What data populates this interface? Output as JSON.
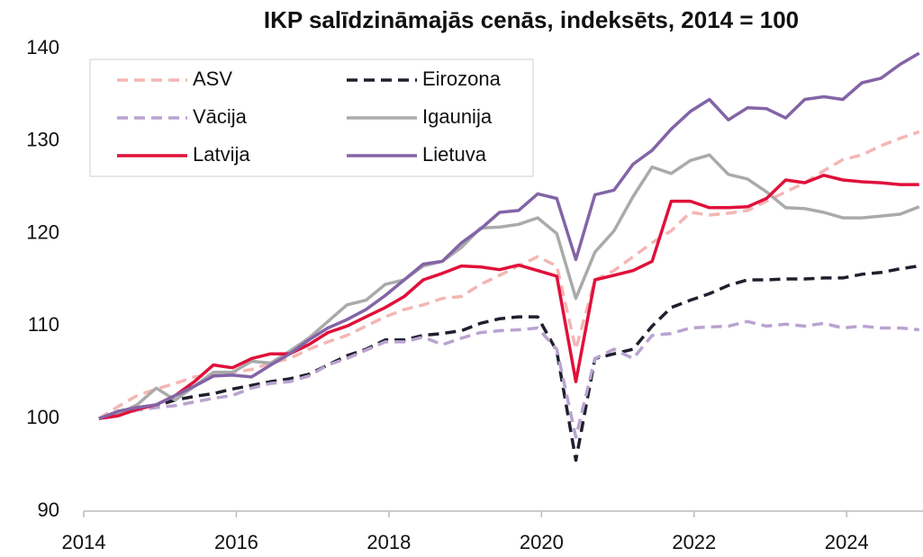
{
  "chart_data": {
    "type": "line",
    "title": "IKP salīdzināmajās cenās, indeksēts, 2014 = 100",
    "x": [
      2014.2,
      2014.45,
      2014.7,
      2014.95,
      2015.2,
      2015.45,
      2015.7,
      2015.95,
      2016.2,
      2016.45,
      2016.7,
      2016.95,
      2017.2,
      2017.45,
      2017.7,
      2017.95,
      2018.2,
      2018.45,
      2018.7,
      2018.95,
      2019.2,
      2019.45,
      2019.7,
      2019.95,
      2020.2,
      2020.45,
      2020.7,
      2020.95,
      2021.2,
      2021.45,
      2021.7,
      2021.95,
      2022.2,
      2022.45,
      2022.7,
      2022.95,
      2023.2,
      2023.45,
      2023.7,
      2023.95,
      2024.2,
      2024.45,
      2024.7,
      2024.95
    ],
    "series": [
      {
        "name": "ASV",
        "color": "#f4b6b4",
        "dashed": true,
        "values": [
          100,
          101.3,
          102.5,
          103.2,
          103.8,
          104.5,
          104.8,
          105,
          105.3,
          106,
          106.5,
          107.5,
          108.3,
          109,
          110,
          111,
          111.8,
          112.3,
          113,
          113.2,
          114.5,
          115.5,
          116.5,
          117.5,
          116.5,
          107.5,
          115,
          116,
          117.5,
          119,
          120.3,
          122.3,
          122,
          122.2,
          122.5,
          123.5,
          124.5,
          125.5,
          126.8,
          128,
          128.5,
          129.5,
          130.3,
          131
        ]
      },
      {
        "name": "Eirozona",
        "color": "#1f1f2e",
        "dashed": true,
        "values": [
          100,
          100.6,
          101.1,
          101.4,
          102,
          102.4,
          102.7,
          103.2,
          103.6,
          104,
          104.3,
          104.8,
          105.8,
          106.8,
          107.5,
          108.5,
          108.5,
          109,
          109.2,
          109.5,
          110.3,
          110.8,
          111,
          111,
          107.3,
          95.5,
          106.5,
          107,
          107.5,
          110,
          112,
          112.8,
          113.5,
          114.4,
          115,
          115,
          115.1,
          115.1,
          115.2,
          115.2,
          115.6,
          115.8,
          116.2,
          116.5
        ]
      },
      {
        "name": "Vācija",
        "color": "#b9a3cf",
        "dashed": true,
        "values": [
          100,
          100.4,
          100.9,
          101.2,
          101.4,
          101.8,
          102.2,
          102.5,
          103.3,
          103.8,
          104,
          104.6,
          105.8,
          106.5,
          107.4,
          108.3,
          108.3,
          108.8,
          108,
          108.7,
          109.3,
          109.5,
          109.6,
          109.8,
          107.5,
          98,
          106.5,
          107.5,
          106.5,
          109,
          109.2,
          109.8,
          109.9,
          110,
          110.5,
          110,
          110.2,
          110,
          110.3,
          109.8,
          110,
          109.8,
          109.8,
          109.6
        ]
      },
      {
        "name": "Igaunija",
        "color": "#aaaaaa",
        "dashed": false,
        "values": [
          100,
          100.5,
          101.5,
          103.3,
          102,
          103.5,
          105,
          105,
          106.2,
          106,
          107.3,
          108.7,
          110.5,
          112.3,
          112.8,
          114.5,
          115,
          116.5,
          117,
          118.5,
          120.6,
          120.7,
          121,
          121.7,
          120,
          113,
          118,
          120.3,
          124,
          127.2,
          126.5,
          127.9,
          128.5,
          126.4,
          125.9,
          124.5,
          122.8,
          122.7,
          122.3,
          121.7,
          121.7,
          121.9,
          122.1,
          122.9
        ]
      },
      {
        "name": "Latvija",
        "color": "#e0103a",
        "dashed": false,
        "values": [
          100,
          100.3,
          101,
          101.5,
          102.5,
          104,
          105.8,
          105.5,
          106.5,
          107,
          107,
          108,
          109.3,
          110,
          111,
          112,
          113.2,
          115,
          115.7,
          116.5,
          116.4,
          116.1,
          116.6,
          116,
          115.4,
          104,
          115,
          115.5,
          116,
          117,
          123.5,
          123.5,
          122.8,
          122.8,
          122.9,
          123.8,
          125.8,
          125.5,
          126.3,
          125.8,
          125.6,
          125.5,
          125.3,
          125.3
        ]
      },
      {
        "name": "Lietuva",
        "color": "#8364a6",
        "dashed": false,
        "values": [
          100,
          100.8,
          101.2,
          101.5,
          102.5,
          103.5,
          104.6,
          104.7,
          104.5,
          105.8,
          107,
          108.5,
          109.8,
          110.7,
          111.8,
          113.3,
          115,
          116.7,
          117,
          119,
          120.5,
          122.3,
          122.5,
          124.3,
          123.8,
          117.2,
          124.2,
          124.7,
          127.5,
          129,
          131.3,
          133.2,
          134.5,
          132.3,
          133.6,
          133.5,
          132.5,
          134.5,
          134.8,
          134.5,
          136.3,
          136.8,
          138.3,
          139.5
        ]
      }
    ],
    "xlim": [
      2014,
      2025
    ],
    "xticks": [
      2014,
      2016,
      2018,
      2020,
      2022,
      2024
    ],
    "ylim": [
      90,
      140
    ],
    "yticks": [
      90,
      100,
      110,
      120,
      130,
      140
    ],
    "grid": false,
    "legend": "upper left"
  }
}
